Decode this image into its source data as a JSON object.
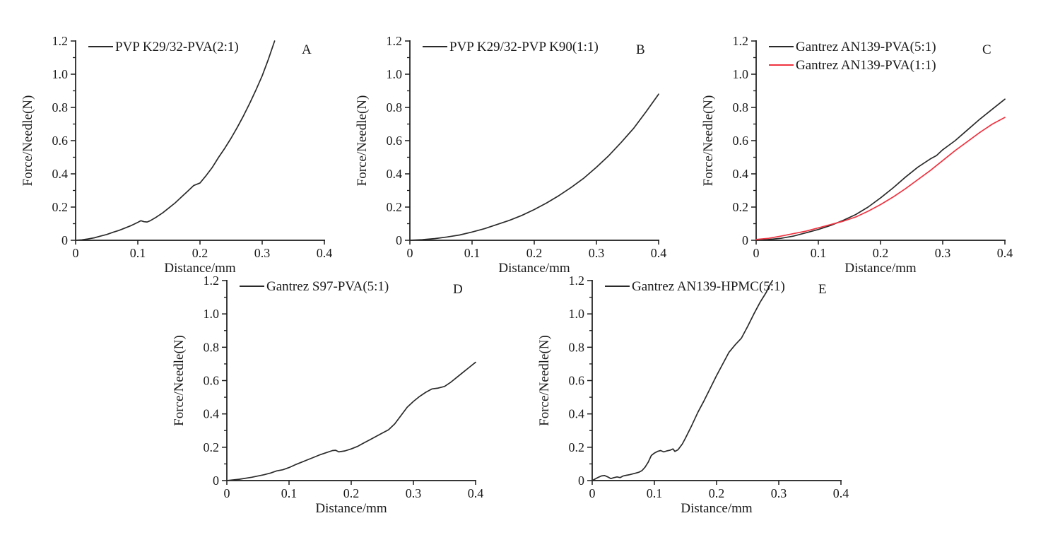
{
  "figure": {
    "background": "#ffffff",
    "axis_color": "#1a1a1a",
    "text_color": "#1a1a1a",
    "xlabel": "Distance/mm",
    "ylabel": "Force/Needle(N)",
    "x_tick_values": [
      0,
      0.1,
      0.2,
      0.3,
      0.4
    ],
    "x_ticks": [
      "0",
      "0.1",
      "0.2",
      "0.3",
      "0.4"
    ],
    "y_tick_values": [
      0,
      0.2,
      0.4,
      0.6,
      0.8,
      1.0,
      1.2
    ],
    "y_ticks": [
      "0",
      "0.2",
      "0.4",
      "0.6",
      "0.8",
      "1.0",
      "1.2"
    ],
    "y_minor_tick_values": [
      0.1,
      0.3,
      0.5,
      0.7,
      0.9,
      1.1
    ],
    "xlim": [
      0,
      0.4
    ],
    "ylim": [
      0,
      1.2
    ]
  },
  "chart_data": [
    {
      "id": "A",
      "label": "A",
      "type": "line",
      "title": "",
      "xlabel": "Distance/mm",
      "ylabel": "Force/Needle(N)",
      "xlim": [
        0,
        0.4
      ],
      "ylim": [
        0,
        1.2
      ],
      "grid": false,
      "legend_position": "top-left",
      "series": [
        {
          "name": "PVP K29/32-PVA(2:1)",
          "color": "#2a2a2a",
          "points": [
            [
              0,
              0
            ],
            [
              0.01,
              0.003
            ],
            [
              0.02,
              0.008
            ],
            [
              0.03,
              0.015
            ],
            [
              0.04,
              0.025
            ],
            [
              0.05,
              0.035
            ],
            [
              0.06,
              0.048
            ],
            [
              0.07,
              0.06
            ],
            [
              0.08,
              0.075
            ],
            [
              0.09,
              0.09
            ],
            [
              0.1,
              0.108
            ],
            [
              0.105,
              0.118
            ],
            [
              0.11,
              0.112
            ],
            [
              0.115,
              0.11
            ],
            [
              0.12,
              0.118
            ],
            [
              0.13,
              0.14
            ],
            [
              0.14,
              0.165
            ],
            [
              0.15,
              0.195
            ],
            [
              0.16,
              0.225
            ],
            [
              0.17,
              0.26
            ],
            [
              0.18,
              0.295
            ],
            [
              0.19,
              0.33
            ],
            [
              0.2,
              0.345
            ],
            [
              0.21,
              0.39
            ],
            [
              0.22,
              0.44
            ],
            [
              0.23,
              0.5
            ],
            [
              0.24,
              0.555
            ],
            [
              0.25,
              0.615
            ],
            [
              0.26,
              0.68
            ],
            [
              0.27,
              0.75
            ],
            [
              0.28,
              0.825
            ],
            [
              0.29,
              0.905
            ],
            [
              0.3,
              0.99
            ],
            [
              0.31,
              1.09
            ],
            [
              0.32,
              1.2
            ]
          ]
        }
      ]
    },
    {
      "id": "B",
      "label": "B",
      "type": "line",
      "title": "",
      "xlabel": "Distance/mm",
      "ylabel": "Force/Needle(N)",
      "xlim": [
        0,
        0.4
      ],
      "ylim": [
        0,
        1.2
      ],
      "grid": false,
      "legend_position": "top-left",
      "series": [
        {
          "name": "PVP K29/32-PVP K90(1:1)",
          "color": "#2a2a2a",
          "points": [
            [
              0,
              0
            ],
            [
              0.02,
              0.004
            ],
            [
              0.04,
              0.01
            ],
            [
              0.06,
              0.02
            ],
            [
              0.08,
              0.032
            ],
            [
              0.1,
              0.05
            ],
            [
              0.12,
              0.07
            ],
            [
              0.14,
              0.095
            ],
            [
              0.16,
              0.12
            ],
            [
              0.18,
              0.15
            ],
            [
              0.2,
              0.185
            ],
            [
              0.22,
              0.225
            ],
            [
              0.24,
              0.27
            ],
            [
              0.26,
              0.32
            ],
            [
              0.28,
              0.375
            ],
            [
              0.3,
              0.44
            ],
            [
              0.32,
              0.51
            ],
            [
              0.34,
              0.59
            ],
            [
              0.36,
              0.675
            ],
            [
              0.38,
              0.775
            ],
            [
              0.4,
              0.88
            ]
          ]
        }
      ]
    },
    {
      "id": "C",
      "label": "C",
      "type": "line",
      "title": "",
      "xlabel": "Distance/mm",
      "ylabel": "Force/Needle(N)",
      "xlim": [
        0,
        0.4
      ],
      "ylim": [
        0,
        1.2
      ],
      "grid": false,
      "legend_position": "top-left",
      "series": [
        {
          "name": "Gantrez AN139-PVA(5:1)",
          "color": "#2a2a2a",
          "points": [
            [
              0,
              0
            ],
            [
              0.02,
              0.005
            ],
            [
              0.04,
              0.012
            ],
            [
              0.06,
              0.025
            ],
            [
              0.08,
              0.045
            ],
            [
              0.1,
              0.065
            ],
            [
              0.12,
              0.09
            ],
            [
              0.14,
              0.12
            ],
            [
              0.16,
              0.155
            ],
            [
              0.18,
              0.2
            ],
            [
              0.2,
              0.255
            ],
            [
              0.22,
              0.315
            ],
            [
              0.24,
              0.38
            ],
            [
              0.26,
              0.44
            ],
            [
              0.28,
              0.49
            ],
            [
              0.29,
              0.51
            ],
            [
              0.3,
              0.545
            ],
            [
              0.32,
              0.6
            ],
            [
              0.34,
              0.665
            ],
            [
              0.36,
              0.73
            ],
            [
              0.38,
              0.79
            ],
            [
              0.4,
              0.85
            ]
          ]
        },
        {
          "name": "Gantrez AN139-PVA(1:1)",
          "color": "#ee3340",
          "points": [
            [
              0,
              0.005
            ],
            [
              0.02,
              0.012
            ],
            [
              0.04,
              0.025
            ],
            [
              0.06,
              0.04
            ],
            [
              0.08,
              0.055
            ],
            [
              0.1,
              0.075
            ],
            [
              0.12,
              0.095
            ],
            [
              0.14,
              0.115
            ],
            [
              0.16,
              0.14
            ],
            [
              0.18,
              0.175
            ],
            [
              0.2,
              0.215
            ],
            [
              0.22,
              0.26
            ],
            [
              0.24,
              0.31
            ],
            [
              0.26,
              0.365
            ],
            [
              0.28,
              0.42
            ],
            [
              0.3,
              0.48
            ],
            [
              0.32,
              0.54
            ],
            [
              0.34,
              0.595
            ],
            [
              0.36,
              0.65
            ],
            [
              0.38,
              0.7
            ],
            [
              0.4,
              0.74
            ]
          ]
        }
      ]
    },
    {
      "id": "D",
      "label": "D",
      "type": "line",
      "title": "",
      "xlabel": "Distance/mm",
      "ylabel": "Force/Needle(N)",
      "xlim": [
        0,
        0.4
      ],
      "ylim": [
        0,
        1.2
      ],
      "grid": false,
      "legend_position": "top-left",
      "series": [
        {
          "name": "Gantrez S97-PVA(5:1)",
          "color": "#2a2a2a",
          "points": [
            [
              0,
              0
            ],
            [
              0.02,
              0.008
            ],
            [
              0.04,
              0.02
            ],
            [
              0.06,
              0.035
            ],
            [
              0.07,
              0.045
            ],
            [
              0.08,
              0.058
            ],
            [
              0.09,
              0.065
            ],
            [
              0.1,
              0.078
            ],
            [
              0.11,
              0.095
            ],
            [
              0.12,
              0.11
            ],
            [
              0.13,
              0.125
            ],
            [
              0.14,
              0.14
            ],
            [
              0.15,
              0.155
            ],
            [
              0.16,
              0.168
            ],
            [
              0.17,
              0.18
            ],
            [
              0.175,
              0.182
            ],
            [
              0.18,
              0.172
            ],
            [
              0.19,
              0.178
            ],
            [
              0.2,
              0.19
            ],
            [
              0.21,
              0.205
            ],
            [
              0.22,
              0.225
            ],
            [
              0.23,
              0.245
            ],
            [
              0.24,
              0.265
            ],
            [
              0.25,
              0.285
            ],
            [
              0.26,
              0.305
            ],
            [
              0.27,
              0.34
            ],
            [
              0.28,
              0.39
            ],
            [
              0.29,
              0.44
            ],
            [
              0.3,
              0.475
            ],
            [
              0.31,
              0.505
            ],
            [
              0.32,
              0.53
            ],
            [
              0.33,
              0.55
            ],
            [
              0.34,
              0.555
            ],
            [
              0.35,
              0.565
            ],
            [
              0.36,
              0.59
            ],
            [
              0.37,
              0.62
            ],
            [
              0.38,
              0.65
            ],
            [
              0.39,
              0.68
            ],
            [
              0.4,
              0.71
            ]
          ]
        }
      ]
    },
    {
      "id": "E",
      "label": "E",
      "type": "line",
      "title": "",
      "xlabel": "Distance/mm",
      "ylabel": "Force/Needle(N)",
      "xlim": [
        0,
        0.4
      ],
      "ylim": [
        0,
        1.2
      ],
      "grid": false,
      "legend_position": "top-left",
      "series": [
        {
          "name": "Gantrez AN139-HPMC(5:1)",
          "color": "#2a2a2a",
          "points": [
            [
              0,
              0
            ],
            [
              0.005,
              0.01
            ],
            [
              0.01,
              0.02
            ],
            [
              0.015,
              0.028
            ],
            [
              0.02,
              0.03
            ],
            [
              0.025,
              0.022
            ],
            [
              0.03,
              0.012
            ],
            [
              0.035,
              0.018
            ],
            [
              0.04,
              0.022
            ],
            [
              0.045,
              0.018
            ],
            [
              0.05,
              0.028
            ],
            [
              0.055,
              0.032
            ],
            [
              0.06,
              0.035
            ],
            [
              0.065,
              0.04
            ],
            [
              0.07,
              0.045
            ],
            [
              0.075,
              0.05
            ],
            [
              0.08,
              0.06
            ],
            [
              0.085,
              0.08
            ],
            [
              0.09,
              0.11
            ],
            [
              0.095,
              0.15
            ],
            [
              0.1,
              0.165
            ],
            [
              0.105,
              0.175
            ],
            [
              0.11,
              0.18
            ],
            [
              0.115,
              0.172
            ],
            [
              0.12,
              0.178
            ],
            [
              0.125,
              0.182
            ],
            [
              0.13,
              0.19
            ],
            [
              0.133,
              0.175
            ],
            [
              0.138,
              0.185
            ],
            [
              0.145,
              0.22
            ],
            [
              0.15,
              0.255
            ],
            [
              0.16,
              0.33
            ],
            [
              0.17,
              0.41
            ],
            [
              0.18,
              0.48
            ],
            [
              0.19,
              0.555
            ],
            [
              0.2,
              0.63
            ],
            [
              0.21,
              0.7
            ],
            [
              0.22,
              0.77
            ],
            [
              0.23,
              0.815
            ],
            [
              0.24,
              0.855
            ],
            [
              0.25,
              0.925
            ],
            [
              0.26,
              1.0
            ],
            [
              0.27,
              1.07
            ],
            [
              0.28,
              1.13
            ],
            [
              0.285,
              1.17
            ],
            [
              0.29,
              1.2
            ]
          ]
        }
      ]
    }
  ]
}
